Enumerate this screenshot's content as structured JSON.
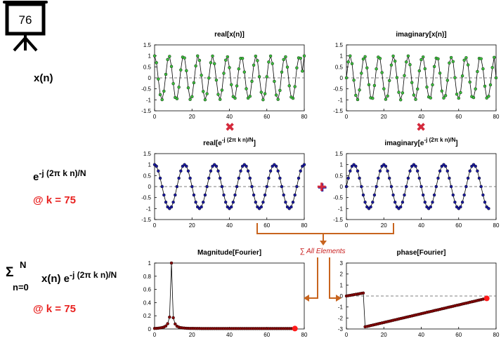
{
  "badge": {
    "number": "76"
  },
  "row_labels": {
    "xn": "x(n)",
    "kernel_base": "e",
    "kernel_exp": "-j (2π k n)/N",
    "k1": "@ k = 75",
    "sum_sigma": "Σ",
    "sum_upper": "N",
    "sum_lower": "n=0",
    "sum_body": "x(n) e",
    "sum_exp": "-j (2π k n)/N",
    "k2": "@ k = 75"
  },
  "operators": {
    "times1": "✖",
    "times2": "✖",
    "plus": "✚",
    "sum_all": "∑ All Elements"
  },
  "colors": {
    "green": "#3cc03c",
    "blue": "#1a1aa0",
    "darkred": "#8b0000",
    "red": "#ff1a1a",
    "arrow": "#c8641e",
    "times": "#d42a3c",
    "accent": "#e8201e"
  },
  "chart_data": [
    {
      "id": "p1",
      "type": "line",
      "title": "real[x(n)]",
      "xlim": [
        0,
        80
      ],
      "ylim": [
        -1.5,
        1.5
      ],
      "xticks": [
        "0",
        "20",
        "40",
        "60",
        "80"
      ],
      "yticks": [
        "1.5",
        "1",
        "0.5",
        "0",
        "-0.5",
        "-1",
        "-1.5"
      ],
      "series": [
        {
          "color": "green",
          "values": [
            1.0,
            0.688,
            -0.053,
            -0.765,
            -0.994,
            -0.606,
            0.159,
            0.834,
            0.976,
            0.518,
            -0.262,
            -0.894,
            -0.947,
            -0.424,
            0.361,
            0.944,
            0.906,
            0.326,
            -0.454,
            -0.982,
            -0.855,
            -0.223,
            0.541,
            1.0,
            0.794,
            0.117,
            -0.62,
            -0.995,
            -0.724,
            -0.008,
            0.69,
            0.993,
            0.645,
            -0.101,
            -0.752,
            -0.98,
            -0.558,
            0.208,
            0.806,
            0.958,
            0.465,
            -0.311,
            -0.851,
            -0.927,
            -0.367,
            0.407,
            0.886,
            0.888,
            0.265,
            -0.495,
            -0.921,
            -0.84,
            -0.161,
            0.578,
            0.989,
            0.784,
            0.055,
            -0.655,
            -0.996,
            -0.72,
            0.052,
            0.722,
            0.993,
            0.649,
            -0.158,
            -0.782,
            -0.98,
            -0.571,
            0.262,
            0.834,
            0.958,
            0.488,
            -0.361,
            -0.876,
            -0.928,
            -0.399,
            0.454,
            0.91,
            0.89,
            0.307,
            1.0
          ]
        }
      ]
    },
    {
      "id": "p2",
      "type": "line",
      "title": "imaginary[x(n)]",
      "xlim": [
        0,
        80
      ],
      "ylim": [
        -1.5,
        1.5
      ],
      "xticks": [
        "0",
        "20",
        "40",
        "60",
        "80"
      ],
      "yticks": [
        "1.5",
        "1",
        "0.5",
        "0",
        "-0.5",
        "-1",
        "-1.5"
      ],
      "series": [
        {
          "color": "green",
          "values": [
            0.0,
            0.726,
            0.999,
            0.644,
            -0.106,
            -0.796,
            -0.988,
            -0.551,
            0.21,
            0.856,
            0.965,
            0.452,
            -0.312,
            -0.906,
            -0.93,
            -0.347,
            0.408,
            0.946,
            0.883,
            0.238,
            -0.498,
            -0.975,
            -0.826,
            -0.126,
            0.581,
            0.993,
            0.759,
            0.012,
            -0.657,
            -1.0,
            -0.683,
            0.102,
            0.724,
            0.995,
            0.599,
            -0.213,
            -0.782,
            -0.979,
            -0.509,
            0.32,
            0.83,
            0.952,
            0.414,
            -0.421,
            -0.868,
            -0.914,
            -0.316,
            0.514,
            0.896,
            0.866,
            0.215,
            -0.6,
            -0.915,
            -0.809,
            -0.113,
            0.677,
            0.924,
            0.743,
            0.011,
            -0.745,
            -0.924,
            -0.669,
            0.09,
            0.803,
            0.915,
            0.589,
            -0.19,
            -0.851,
            -0.896,
            -0.503,
            0.288,
            0.888,
            0.87,
            0.412,
            -0.381,
            -0.915,
            -0.835,
            -0.318,
            0.468,
            0.932,
            0.0
          ]
        }
      ]
    },
    {
      "id": "p3",
      "type": "line",
      "title": "real[e",
      "title_sup": "-j (2π k n)/N",
      "title_end": "]",
      "xlim": [
        0,
        80
      ],
      "ylim": [
        -1.5,
        1.5
      ],
      "xticks": [
        "0",
        "20",
        "40",
        "60",
        "80"
      ],
      "yticks": [
        "1.5",
        "1",
        "0.5",
        "0",
        "-0.5",
        "-1",
        "-1.5"
      ],
      "series": [
        {
          "color": "blue",
          "values": [
            1.0,
            0.924,
            0.707,
            0.383,
            0.0,
            -0.383,
            -0.707,
            -0.924,
            -1.0,
            -0.924,
            -0.707,
            -0.383,
            0.0,
            0.383,
            0.707,
            0.924,
            1.0,
            0.924,
            0.707,
            0.383,
            0.0,
            -0.383,
            -0.707,
            -0.924,
            -1.0,
            -0.924,
            -0.707,
            -0.383,
            0.0,
            0.383,
            0.707,
            0.924,
            1.0,
            0.924,
            0.707,
            0.383,
            0.0,
            -0.383,
            -0.707,
            -0.924,
            -1.0,
            -0.924,
            -0.707,
            -0.383,
            0.0,
            0.383,
            0.707,
            0.924,
            1.0,
            0.924,
            0.707,
            0.383,
            0.0,
            -0.383,
            -0.707,
            -0.924,
            -1.0,
            -0.924,
            -0.707,
            -0.383,
            0.0,
            0.383,
            0.707,
            0.924,
            1.0,
            0.924,
            0.707,
            0.383,
            0.0,
            -0.383,
            -0.707,
            -0.924,
            -1.0,
            -0.924,
            -0.707,
            -0.383,
            0.0,
            0.383,
            0.707,
            0.924,
            1.0
          ]
        }
      ]
    },
    {
      "id": "p4",
      "type": "line",
      "title": "imaginary[e",
      "title_sup": "-j (2π k n)/N",
      "title_end": "]",
      "xlim": [
        0,
        80
      ],
      "ylim": [
        -1.5,
        1.5
      ],
      "xticks": [
        "0",
        "20",
        "40",
        "60",
        "80"
      ],
      "yticks": [
        "1.5",
        "1",
        "0.5",
        "0",
        "-0.5",
        "-1",
        "-1.5"
      ],
      "series": [
        {
          "color": "blue",
          "values": [
            0.0,
            0.383,
            0.707,
            0.924,
            1.0,
            0.924,
            0.707,
            0.383,
            0.0,
            -0.383,
            -0.707,
            -0.924,
            -1.0,
            -0.924,
            -0.707,
            -0.383,
            0.0,
            0.383,
            0.707,
            0.924,
            1.0,
            0.924,
            0.707,
            0.383,
            0.0,
            -0.383,
            -0.707,
            -0.924,
            -1.0,
            -0.924,
            -0.707,
            -0.383,
            0.0,
            0.383,
            0.707,
            0.924,
            1.0,
            0.924,
            0.707,
            0.383,
            0.0,
            -0.383,
            -0.707,
            -0.924,
            -1.0,
            -0.924,
            -0.707,
            -0.383,
            0.0,
            0.383,
            0.707,
            0.924,
            1.0,
            0.924,
            0.707,
            0.383,
            0.0,
            -0.383,
            -0.707,
            -0.924,
            -1.0,
            -0.924,
            -0.707,
            -0.383,
            0.0,
            0.383,
            0.707,
            0.924,
            1.0,
            0.924,
            0.707,
            0.383,
            0.0,
            -0.383,
            -0.707,
            -0.924,
            -1.0
          ]
        }
      ]
    },
    {
      "id": "p5",
      "type": "line",
      "title": "Magnitude[Fourier]",
      "xlim": [
        0,
        80
      ],
      "ylim": [
        0,
        1
      ],
      "xticks": [
        "0",
        "20",
        "40",
        "60",
        "80"
      ],
      "yticks": [
        "1",
        "0.8",
        "0.6",
        "0.4",
        "0.2",
        "0"
      ],
      "series": [
        {
          "color": "darkred",
          "highlight_last": true,
          "values": [
            0.008,
            0.01,
            0.012,
            0.016,
            0.021,
            0.03,
            0.045,
            0.08,
            0.18,
            1.0,
            0.17,
            0.075,
            0.042,
            0.028,
            0.02,
            0.016,
            0.013,
            0.011,
            0.01,
            0.009,
            0.008,
            0.008,
            0.007,
            0.007,
            0.007,
            0.006,
            0.006,
            0.006,
            0.006,
            0.006,
            0.006,
            0.006,
            0.006,
            0.006,
            0.006,
            0.006,
            0.006,
            0.006,
            0.006,
            0.006,
            0.006,
            0.006,
            0.006,
            0.006,
            0.006,
            0.006,
            0.006,
            0.006,
            0.006,
            0.006,
            0.006,
            0.006,
            0.006,
            0.006,
            0.006,
            0.006,
            0.006,
            0.006,
            0.006,
            0.006,
            0.006,
            0.006,
            0.006,
            0.006,
            0.006,
            0.006,
            0.006,
            0.006,
            0.006,
            0.006,
            0.006,
            0.006,
            0.006,
            0.006,
            0.006,
            0.006
          ]
        }
      ]
    },
    {
      "id": "p6",
      "type": "line",
      "title": "phase[Fourier]",
      "xlim": [
        0,
        80
      ],
      "ylim": [
        -3,
        3
      ],
      "xticks": [
        "0",
        "20",
        "40",
        "60",
        "80"
      ],
      "yticks": [
        "3",
        "2",
        "1",
        "0",
        "-1",
        "-2",
        "-3"
      ],
      "series": [
        {
          "color": "darkred",
          "highlight_last": true,
          "values": [
            0.0,
            0.03,
            0.06,
            0.09,
            0.12,
            0.15,
            0.18,
            0.21,
            0.24,
            0.27,
            -2.8,
            -2.77,
            -2.73,
            -2.69,
            -2.65,
            -2.61,
            -2.57,
            -2.53,
            -2.49,
            -2.45,
            -2.41,
            -2.37,
            -2.33,
            -2.29,
            -2.25,
            -2.21,
            -2.17,
            -2.13,
            -2.09,
            -2.05,
            -2.01,
            -1.97,
            -1.93,
            -1.89,
            -1.85,
            -1.81,
            -1.77,
            -1.73,
            -1.69,
            -1.65,
            -1.61,
            -1.57,
            -1.53,
            -1.49,
            -1.45,
            -1.41,
            -1.37,
            -1.33,
            -1.29,
            -1.25,
            -1.21,
            -1.17,
            -1.13,
            -1.09,
            -1.05,
            -1.01,
            -0.97,
            -0.93,
            -0.89,
            -0.85,
            -0.81,
            -0.77,
            -0.73,
            -0.69,
            -0.65,
            -0.61,
            -0.57,
            -0.53,
            -0.49,
            -0.45,
            -0.41,
            -0.37,
            -0.33,
            -0.29,
            -0.25,
            -0.22
          ]
        }
      ]
    }
  ]
}
